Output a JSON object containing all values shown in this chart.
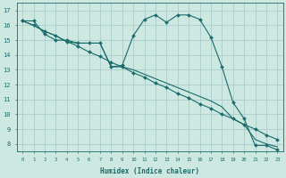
{
  "xlabel": "Humidex (Indice chaleur)",
  "bg_color": "#cce8e0",
  "grid_color": "#aacccc",
  "line_color": "#1a6b6b",
  "xlim": [
    -0.5,
    23.5
  ],
  "ylim": [
    7.5,
    17.5
  ],
  "xticks": [
    0,
    1,
    2,
    3,
    4,
    5,
    6,
    7,
    8,
    9,
    10,
    11,
    12,
    13,
    14,
    15,
    16,
    17,
    18,
    19,
    20,
    21,
    22,
    23
  ],
  "yticks": [
    8,
    9,
    10,
    11,
    12,
    13,
    14,
    15,
    16,
    17
  ],
  "series": [
    {
      "x": [
        0,
        1,
        2,
        3,
        4,
        5,
        6,
        7,
        8,
        9,
        10,
        11,
        12,
        13,
        14,
        15,
        16,
        17,
        18,
        19,
        20,
        21,
        22,
        23
      ],
      "y": [
        16.3,
        16.3,
        15.4,
        15.0,
        15.0,
        14.8,
        14.8,
        14.8,
        13.2,
        13.3,
        15.3,
        16.4,
        16.7,
        16.2,
        16.7,
        16.7,
        16.4,
        15.2,
        13.2,
        10.8,
        9.7,
        7.9,
        7.9,
        7.6
      ],
      "has_markers": true
    },
    {
      "x": [
        0,
        1,
        2,
        3,
        4,
        5,
        6,
        7,
        8,
        9,
        10,
        11,
        12,
        13,
        14,
        15,
        16,
        17,
        18,
        19,
        20,
        21,
        22,
        23
      ],
      "y": [
        16.3,
        16.0,
        15.6,
        15.3,
        14.9,
        14.6,
        14.2,
        13.9,
        13.5,
        13.2,
        12.8,
        12.5,
        12.1,
        11.8,
        11.4,
        11.1,
        10.7,
        10.4,
        10.0,
        9.7,
        9.3,
        9.0,
        8.6,
        8.3
      ],
      "has_markers": true
    },
    {
      "x": [
        0,
        1,
        2,
        3,
        4,
        5,
        6,
        7,
        8,
        9,
        10,
        11,
        12,
        13,
        14,
        15,
        16,
        17,
        18,
        19,
        20,
        21,
        22,
        23
      ],
      "y": [
        16.3,
        16.0,
        15.6,
        15.3,
        14.9,
        14.8,
        14.8,
        14.8,
        13.2,
        13.2,
        13.0,
        12.7,
        12.4,
        12.1,
        11.8,
        11.5,
        11.2,
        10.9,
        10.5,
        9.7,
        9.3,
        8.3,
        8.0,
        7.8
      ],
      "has_markers": false
    }
  ]
}
